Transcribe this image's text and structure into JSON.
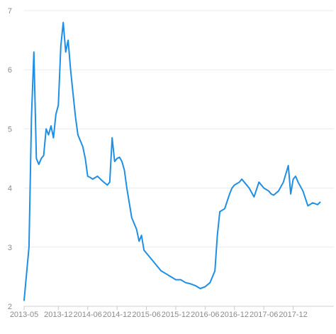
{
  "chart_data": {
    "type": "line",
    "title": "",
    "xlabel": "",
    "ylabel": "",
    "x_type": "date",
    "xlim": [
      "2013-05",
      "2018-06"
    ],
    "ylim": [
      2,
      7
    ],
    "y_ticks": [
      2,
      3,
      4,
      5,
      6,
      7
    ],
    "x_ticks": [
      "2013-05",
      "2013-12",
      "2014-06",
      "2014-12",
      "2015-06",
      "2015-12",
      "2016-06",
      "2016-12",
      "2017-06",
      "2017-12"
    ],
    "grid": true,
    "legend": "none",
    "colors": {
      "line": "#1f8fe5",
      "grid": "#ebebeb",
      "tick_text": "#8a8a8a"
    },
    "series": [
      {
        "x": [
          "2013-05",
          "2013-06",
          "2013-06",
          "2013-07",
          "2013-07",
          "2013-08",
          "2013-08",
          "2013-09",
          "2013-09",
          "2013-10",
          "2013-10",
          "2013-11",
          "2013-11",
          "2013-12",
          "2013-12",
          "2014-01",
          "2014-01",
          "2014-02",
          "2014-02",
          "2014-03",
          "2014-03",
          "2014-04",
          "2014-05",
          "2014-05",
          "2014-06",
          "2014-06",
          "2014-07",
          "2014-08",
          "2014-09",
          "2014-10",
          "2014-10",
          "2014-11",
          "2014-11",
          "2014-12",
          "2014-12",
          "2015-01",
          "2015-01",
          "2015-02",
          "2015-03",
          "2015-04",
          "2015-04",
          "2015-05",
          "2015-05",
          "2015-06",
          "2015-07",
          "2015-08",
          "2015-09",
          "2015-10",
          "2015-11",
          "2015-12",
          "2016-01",
          "2016-02",
          "2016-03",
          "2016-04",
          "2016-05",
          "2016-06",
          "2016-07",
          "2016-08",
          "2016-08",
          "2016-09",
          "2016-10",
          "2016-11",
          "2016-11",
          "2016-12",
          "2017-01",
          "2017-01",
          "2017-02",
          "2017-03",
          "2017-04",
          "2017-05",
          "2017-06",
          "2017-07",
          "2017-07",
          "2017-08",
          "2017-09",
          "2017-10",
          "2017-11",
          "2017-11",
          "2017-12",
          "2017-12",
          "2018-01",
          "2018-02",
          "2018-03",
          "2018-04",
          "2018-05",
          "2018-05"
        ],
        "y": [
          2.1,
          3.0,
          5.2,
          6.3,
          4.5,
          4.4,
          4.5,
          4.55,
          5.0,
          4.9,
          5.05,
          4.85,
          5.25,
          5.4,
          6.4,
          6.8,
          6.3,
          6.5,
          6.0,
          5.6,
          5.2,
          4.9,
          4.7,
          4.5,
          4.2,
          4.18,
          4.15,
          4.2,
          4.12,
          4.05,
          4.1,
          4.85,
          4.45,
          4.5,
          4.52,
          4.45,
          4.3,
          4.0,
          3.5,
          3.3,
          3.1,
          3.2,
          2.95,
          2.9,
          2.8,
          2.7,
          2.6,
          2.55,
          2.5,
          2.45,
          2.45,
          2.4,
          2.38,
          2.35,
          2.3,
          2.33,
          2.4,
          2.6,
          3.2,
          3.6,
          3.65,
          3.9,
          4.0,
          4.05,
          4.1,
          4.15,
          4.1,
          4.0,
          3.85,
          4.1,
          4.0,
          3.95,
          3.9,
          3.88,
          3.95,
          4.1,
          4.38,
          3.9,
          4.15,
          4.2,
          4.1,
          3.95,
          3.7,
          3.75,
          3.72,
          3.76
        ]
      }
    ]
  }
}
